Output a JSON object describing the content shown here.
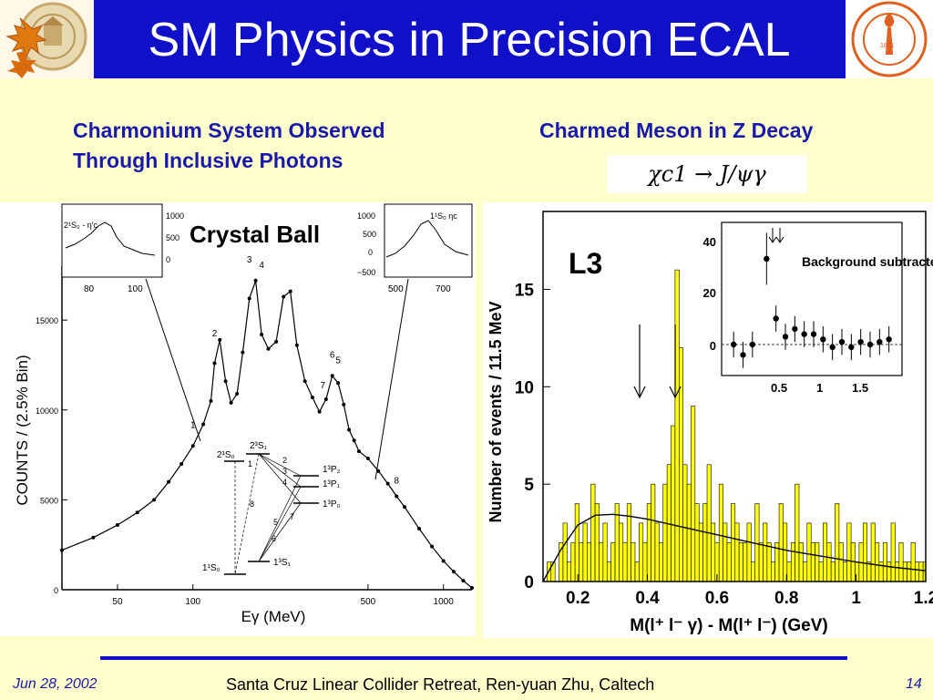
{
  "slide": {
    "title": "SM Physics in Precision ECAL",
    "left_subtitle_line1": "Charmonium System Observed",
    "left_subtitle_line2": "Through Inclusive Photons",
    "right_subtitle": "Charmed Meson in Z Decay",
    "formula": "χc1 → J/ψγ"
  },
  "left_logo": {
    "icon": "university-seal-with-maple-leaf"
  },
  "right_logo": {
    "icon": "caltech-seal",
    "text": "CALIFORNIA INSTITUTE OF TECHNOLOGY",
    "year": "1891"
  },
  "footer": {
    "date": "Jun 28, 2002",
    "credit": "Santa Cruz Linear Collider  Retreat, Ren-yuan Zhu, Caltech",
    "page": "14"
  },
  "chart_data": [
    {
      "type": "line",
      "experiment": "Crystal Ball",
      "ylabel": "COUNTS / (2.5% Bin)",
      "xlabel": "Eγ  (MeV)",
      "xscale": "log",
      "xlim": [
        30,
        1300
      ],
      "ylim": [
        0,
        18000
      ],
      "x_ticks": [
        "50",
        "100",
        "500",
        "1000"
      ],
      "y_ticks": [
        "0",
        "5000",
        "10000",
        "15000"
      ],
      "peak_labels": [
        "1",
        "2",
        "3",
        "4",
        "5",
        "6",
        "7",
        "8"
      ],
      "x": [
        30,
        40,
        50,
        60,
        70,
        80,
        90,
        100,
        110,
        118,
        122,
        128,
        135,
        142,
        150,
        158,
        168,
        178,
        188,
        200,
        215,
        230,
        245,
        260,
        280,
        300,
        320,
        340,
        360,
        380,
        400,
        420,
        440,
        460,
        500,
        550,
        600,
        650,
        700,
        800,
        900,
        1000,
        1100,
        1200,
        1300
      ],
      "y": [
        2200,
        2900,
        3600,
        4300,
        5000,
        6000,
        7000,
        8000,
        9200,
        10500,
        12600,
        13900,
        11600,
        10400,
        10900,
        13200,
        16200,
        17200,
        14200,
        13400,
        13800,
        16300,
        16600,
        13600,
        11600,
        10700,
        9900,
        10600,
        11900,
        11500,
        10300,
        8900,
        8300,
        7700,
        7300,
        6600,
        5900,
        5200,
        4600,
        3400,
        2400,
        1600,
        1000,
        500,
        100
      ],
      "inset_left": {
        "label": "2¹S₀ - η′c",
        "x_ticks": [
          "80",
          "100"
        ],
        "y_ticks": [
          "1000",
          "500",
          "0"
        ]
      },
      "inset_right": {
        "label": "1¹S₀ ηc",
        "x_ticks": [
          "500",
          "700"
        ],
        "y_ticks": [
          "1000",
          "500",
          "0",
          "−500"
        ]
      },
      "level_diagram": {
        "states": [
          "2¹S₀",
          "2³S₁",
          "1³P₂",
          "1³P₁",
          "1³P₀",
          "1¹S₀",
          "1³S₁"
        ],
        "transitions": [
          "1",
          "2",
          "3",
          "4",
          "5",
          "6",
          "7",
          "8"
        ]
      }
    },
    {
      "type": "bar",
      "experiment": "L3",
      "ylabel": "Number of events / 11.5 MeV",
      "xlabel": "M(l⁺ l⁻ γ) - M(l⁺ l⁻)  (GeV)",
      "xlim": [
        0.1,
        1.2
      ],
      "ylim": [
        0,
        19
      ],
      "x_ticks": [
        "0.2",
        "0.4",
        "0.6",
        "0.8",
        "1",
        "1.2"
      ],
      "y_ticks": [
        "0",
        "5",
        "10",
        "15"
      ],
      "bin_width": 0.0115,
      "bins_start": 0.1,
      "values": [
        0,
        1,
        1,
        0,
        2,
        3,
        1,
        2,
        4,
        2,
        3,
        2,
        5,
        4,
        2,
        3,
        1,
        2,
        4,
        3,
        2,
        4,
        2,
        1,
        3,
        2,
        4,
        5,
        3,
        2,
        5,
        6,
        8,
        16,
        12,
        6,
        5,
        9,
        4,
        3,
        4,
        6,
        3,
        2,
        5,
        3,
        2,
        4,
        3,
        2,
        2,
        3,
        1,
        4,
        2,
        3,
        2,
        1,
        2,
        4,
        3,
        1,
        2,
        5,
        2,
        1,
        3,
        2,
        2,
        1,
        3,
        2,
        1,
        4,
        2,
        1,
        3,
        2,
        1,
        2,
        3,
        1,
        3,
        2,
        1,
        2,
        1,
        3,
        1,
        2,
        1,
        1,
        2,
        1,
        1,
        1
      ],
      "fit_curve": {
        "x": [
          0.1,
          0.15,
          0.2,
          0.25,
          0.3,
          0.35,
          0.4,
          0.5,
          0.6,
          0.7,
          0.8,
          0.9,
          1.0,
          1.1,
          1.2
        ],
        "y": [
          0,
          1.6,
          2.9,
          3.4,
          3.45,
          3.35,
          3.2,
          2.8,
          2.4,
          2.0,
          1.6,
          1.3,
          1.0,
          0.75,
          0.55
        ]
      },
      "inset": {
        "label": "Background subtracted",
        "x_ticks": [
          "0.5",
          "1",
          "1.5"
        ],
        "y_ticks": [
          "0",
          "20",
          "40"
        ],
        "x": [
          0.1,
          0.2,
          0.3,
          0.45,
          0.55,
          0.65,
          0.75,
          0.85,
          0.95,
          1.05,
          1.15,
          1.25,
          1.35,
          1.45,
          1.55,
          1.65,
          1.75
        ],
        "y": [
          0,
          -4,
          0,
          33,
          10,
          3,
          6,
          4,
          4,
          2,
          -1,
          1,
          -1,
          1,
          0,
          1,
          2
        ]
      }
    }
  ]
}
